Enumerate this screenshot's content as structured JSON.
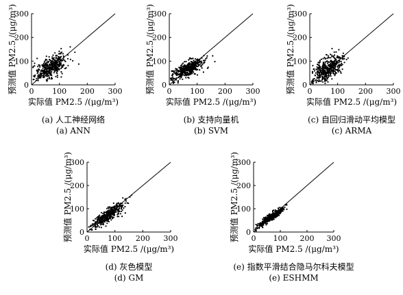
{
  "chart_data": [
    {
      "type": "scatter",
      "panel_caption": "(a) 人工神经网络",
      "panel_caption_en": "(a) ANN",
      "xlabel": "实际值 PM2.5 /(μg/m³)",
      "ylabel": "预测值 PM2.5 /(μg/m³)",
      "xlim": [
        0,
        300
      ],
      "ylim": [
        0,
        300
      ],
      "xticks": [
        "0",
        "100",
        "200",
        "300"
      ],
      "yticks": [
        "0",
        "100",
        "200",
        "300"
      ],
      "reference_line": "y = x",
      "points": {
        "x_center": 70,
        "y_center": 75,
        "x_spread": 28,
        "y_spread": 22,
        "count": 420,
        "seed": 11
      }
    },
    {
      "type": "scatter",
      "panel_caption": "(b) 支持向量机",
      "panel_caption_en": "(b) SVM",
      "xlabel": "实际值 PM2.5 /(μg/m³)",
      "ylabel": "预测值 PM2.5 /(μg/m³)",
      "xlim": [
        0,
        300
      ],
      "ylim": [
        0,
        300
      ],
      "xticks": [
        "0",
        "100",
        "200",
        "300"
      ],
      "yticks": [
        "0",
        "100",
        "200",
        "300"
      ],
      "reference_line": "y = x",
      "points": {
        "x_center": 68,
        "y_center": 68,
        "x_spread": 28,
        "y_spread": 16,
        "count": 420,
        "seed": 23
      }
    },
    {
      "type": "scatter",
      "panel_caption": "(c) 自回归滑动平均模型",
      "panel_caption_en": "(c) ARMA",
      "xlabel": "实际值 PM2.5 /(μg/m³)",
      "ylabel": "预测值 PM2.5 /(μg/m³)",
      "xlim": [
        0,
        300
      ],
      "ylim": [
        0,
        300
      ],
      "xticks": [
        "0",
        "100",
        "200",
        "300"
      ],
      "yticks": [
        "0",
        "100",
        "200",
        "300"
      ],
      "reference_line": "y = x",
      "points": {
        "x_center": 65,
        "y_center": 72,
        "x_spread": 26,
        "y_spread": 24,
        "count": 420,
        "seed": 37
      }
    },
    {
      "type": "scatter",
      "panel_caption": "(d) 灰色模型",
      "panel_caption_en": "(d) GM",
      "xlabel": "实际值 PM2.5 /(μg/m³)",
      "ylabel": "预测值 PM2.5 /(μg/m³)",
      "xlim": [
        0,
        300
      ],
      "ylim": [
        0,
        300
      ],
      "xticks": [
        "0",
        "100",
        "200",
        "300"
      ],
      "yticks": [
        "0",
        "100",
        "200",
        "300"
      ],
      "reference_line": "y = x",
      "points": {
        "x_center": 75,
        "y_center": 72,
        "x_spread": 30,
        "y_spread": 14,
        "count": 420,
        "seed": 41
      }
    },
    {
      "type": "scatter",
      "panel_caption": "(e) 指数平滑结合隐马尔科夫模型",
      "panel_caption_en": "(e) ESHMM",
      "xlabel": "实际值 PM2.5 /(μg/m³)",
      "ylabel": "预测值 PM2.5 /(μg/m³)",
      "xlim": [
        0,
        300
      ],
      "ylim": [
        0,
        300
      ],
      "xticks": [
        "0",
        "100",
        "200",
        "300"
      ],
      "yticks": [
        "0",
        "100",
        "200",
        "300"
      ],
      "reference_line": "y = x",
      "points": {
        "x_center": 65,
        "y_center": 64,
        "x_spread": 24,
        "y_spread": 8,
        "count": 420,
        "seed": 53
      }
    }
  ]
}
